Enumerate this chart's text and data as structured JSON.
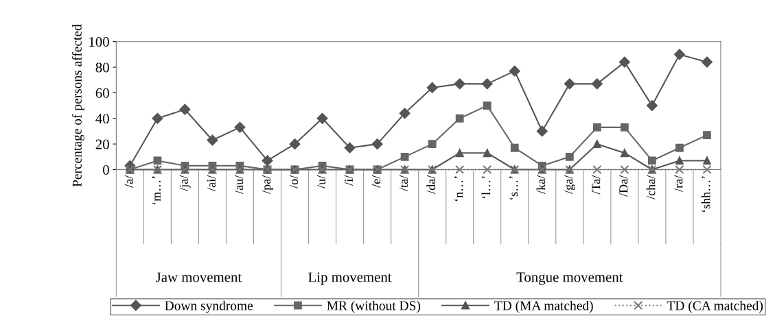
{
  "chart_data": {
    "type": "line",
    "ylabel": "Percentage of persons affected",
    "categories": [
      "/a/",
      "‘m…’",
      "/ja/",
      "/ai/",
      "/au/",
      "/pa/",
      "/o/",
      "/u/",
      "/i/",
      "/e/",
      "/ta/",
      "/da/",
      "‘n…’",
      "‘l…’",
      "‘s…’",
      "/ka/",
      "/ga/",
      "/Ta/",
      "/Da/",
      "/cha/",
      "/ra/",
      "‘shh…’"
    ],
    "series": [
      {
        "name": "Down syndrome",
        "color": "#555555",
        "marker": "diamond",
        "line_style": "solid",
        "values": [
          3,
          40,
          47,
          23,
          33,
          7,
          20,
          40,
          17,
          20,
          44,
          64,
          67,
          67,
          77,
          30,
          67,
          67,
          84,
          50,
          90,
          84
        ]
      },
      {
        "name": "MR (without DS)",
        "color": "#666666",
        "marker": "square",
        "line_style": "solid",
        "values": [
          0,
          7,
          3,
          3,
          3,
          0,
          0,
          3,
          0,
          0,
          10,
          20,
          40,
          50,
          17,
          3,
          10,
          33,
          33,
          7,
          17,
          27
        ]
      },
      {
        "name": "TD (MA matched)",
        "color": "#555555",
        "marker": "triangle",
        "line_style": "solid",
        "values": [
          0,
          0,
          0,
          0,
          0,
          0,
          0,
          0,
          0,
          0,
          0,
          0,
          13,
          13,
          0,
          0,
          0,
          20,
          13,
          0,
          7,
          7
        ]
      },
      {
        "name": "TD (CA matched)",
        "color": "#777777",
        "marker": "cross",
        "line_style": "dotted",
        "values": [
          0,
          0,
          0,
          0,
          0,
          0,
          0,
          0,
          0,
          0,
          0,
          0,
          0,
          0,
          0,
          0,
          0,
          0,
          0,
          0,
          0,
          0
        ]
      }
    ],
    "ylim": [
      0,
      100
    ],
    "yticks": [
      0,
      20,
      40,
      60,
      80,
      100
    ],
    "grid": false,
    "legend": "bottom",
    "annotations": [
      "Jaw movement",
      "Lip movement",
      "Tongue movement"
    ]
  }
}
